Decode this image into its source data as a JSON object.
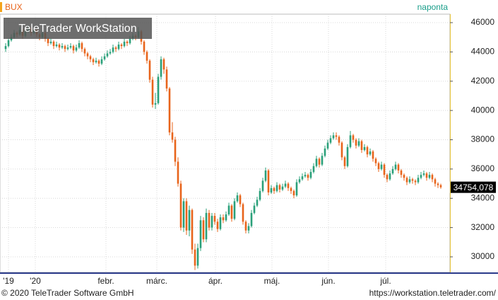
{
  "chart_data": {
    "type": "candlestick",
    "series_name": "BUX",
    "interval": "naponta",
    "watermark": "TeleTrader WorkStation",
    "footer_left": "© 2020 TeleTrader Software GmbH",
    "footer_right": "https://workstation.teletrader.com/",
    "up_color": "#2aa07a",
    "down_color": "#e8641b",
    "grid": true,
    "ylim": [
      28937,
      46580
    ],
    "yticks": [
      30000,
      32000,
      34000,
      36000,
      38000,
      40000,
      42000,
      44000,
      46000
    ],
    "xlim": [
      -2,
      157.25
    ],
    "xticks": [
      {
        "value": 1,
        "label": "'19"
      },
      {
        "value": 10.5,
        "label": "'20"
      },
      {
        "value": 35.5,
        "label": "febr."
      },
      {
        "value": 53.5,
        "label": "márc."
      },
      {
        "value": 74.25,
        "label": "ápr."
      },
      {
        "value": 94.25,
        "label": "máj."
      },
      {
        "value": 114.25,
        "label": "jún."
      },
      {
        "value": 134.5,
        "label": "júl."
      }
    ],
    "close_label": "34754,078",
    "ohlc": [
      [
        44200,
        44600,
        44000,
        44400
      ],
      [
        44400,
        44900,
        44300,
        44800
      ],
      [
        44800,
        45200,
        44700,
        45000
      ],
      [
        45000,
        45500,
        44900,
        45300
      ],
      [
        45300,
        45400,
        45000,
        45200
      ],
      [
        45200,
        45700,
        45100,
        45500
      ],
      [
        45500,
        45600,
        44900,
        45100
      ],
      [
        45100,
        45600,
        45000,
        45400
      ],
      [
        45400,
        45800,
        45300,
        45600
      ],
      [
        45600,
        45700,
        45100,
        45300
      ],
      [
        45300,
        45700,
        45200,
        45500
      ],
      [
        45500,
        45600,
        45000,
        45200
      ],
      [
        45200,
        45300,
        44800,
        45000
      ],
      [
        45000,
        45500,
        44900,
        45300
      ],
      [
        45300,
        45400,
        44700,
        44900
      ],
      [
        44900,
        45000,
        44400,
        44600
      ],
      [
        44600,
        44900,
        44500,
        44700
      ],
      [
        44700,
        44800,
        44200,
        44400
      ],
      [
        44400,
        44700,
        44300,
        44500
      ],
      [
        44500,
        44600,
        44100,
        44300
      ],
      [
        44300,
        44600,
        44200,
        44400
      ],
      [
        44400,
        44500,
        44000,
        44200
      ],
      [
        44200,
        44500,
        44100,
        44300
      ],
      [
        44300,
        44600,
        44200,
        44400
      ],
      [
        44400,
        44500,
        43900,
        44100
      ],
      [
        44100,
        44500,
        44000,
        44300
      ],
      [
        44300,
        44800,
        44200,
        44600
      ],
      [
        44600,
        44700,
        44000,
        44200
      ],
      [
        44200,
        44300,
        43700,
        43900
      ],
      [
        43900,
        44000,
        43500,
        43700
      ],
      [
        43700,
        43800,
        43300,
        43500
      ],
      [
        43500,
        43600,
        43100,
        43300
      ],
      [
        43300,
        43600,
        43200,
        43400
      ],
      [
        43400,
        43500,
        43000,
        43200
      ],
      [
        43200,
        43700,
        43100,
        43500
      ],
      [
        43500,
        43900,
        43400,
        43700
      ],
      [
        43700,
        44100,
        43600,
        43900
      ],
      [
        43900,
        44200,
        43800,
        44000
      ],
      [
        44000,
        44500,
        43900,
        44300
      ],
      [
        44300,
        44400,
        44000,
        44200
      ],
      [
        44200,
        44700,
        44100,
        44500
      ],
      [
        44500,
        44600,
        44200,
        44400
      ],
      [
        44400,
        44900,
        44300,
        44700
      ],
      [
        44700,
        44800,
        44400,
        44600
      ],
      [
        44600,
        45100,
        44500,
        44900
      ],
      [
        44900,
        45300,
        44800,
        45100
      ],
      [
        45100,
        45200,
        44800,
        45000
      ],
      [
        45000,
        45700,
        44900,
        45400
      ],
      [
        45400,
        45500,
        44500,
        44700
      ],
      [
        44700,
        44800,
        43800,
        44000
      ],
      [
        44000,
        44100,
        43200,
        43400
      ],
      [
        43400,
        43500,
        41900,
        42100
      ],
      [
        42100,
        42300,
        40200,
        40400
      ],
      [
        40400,
        41200,
        40100,
        40500
      ],
      [
        40500,
        42500,
        40400,
        42300
      ],
      [
        42300,
        43700,
        42100,
        43500
      ],
      [
        43500,
        43600,
        42500,
        42800
      ],
      [
        42800,
        43000,
        41300,
        41500
      ],
      [
        41500,
        41600,
        38300,
        38500
      ],
      [
        38500,
        39200,
        37800,
        38000
      ],
      [
        38000,
        38200,
        36200,
        36500
      ],
      [
        36500,
        36800,
        34800,
        35000
      ],
      [
        35000,
        35200,
        31800,
        32000
      ],
      [
        32000,
        34000,
        31700,
        33800
      ],
      [
        33800,
        34000,
        31500,
        31800
      ],
      [
        31800,
        33500,
        31400,
        33200
      ],
      [
        33200,
        33300,
        30200,
        30500
      ],
      [
        30500,
        30900,
        29100,
        29400
      ],
      [
        29400,
        30900,
        29200,
        30600
      ],
      [
        30600,
        32800,
        30400,
        32500
      ],
      [
        32500,
        32700,
        31000,
        31200
      ],
      [
        31200,
        33300,
        31000,
        33000
      ],
      [
        33000,
        33200,
        31800,
        32000
      ],
      [
        32000,
        33000,
        31800,
        32800
      ],
      [
        32800,
        33000,
        32200,
        32400
      ],
      [
        32400,
        32600,
        31700,
        31900
      ],
      [
        31900,
        32900,
        31800,
        32700
      ],
      [
        32700,
        32900,
        32300,
        32500
      ],
      [
        32500,
        33100,
        32400,
        32900
      ],
      [
        32900,
        33700,
        32800,
        33500
      ],
      [
        33500,
        33600,
        32400,
        32600
      ],
      [
        32600,
        34000,
        32500,
        33800
      ],
      [
        33800,
        34400,
        33700,
        34200
      ],
      [
        34200,
        34300,
        33400,
        33600
      ],
      [
        33600,
        33700,
        32200,
        32400
      ],
      [
        32400,
        32500,
        31600,
        31800
      ],
      [
        31800,
        32300,
        31600,
        32100
      ],
      [
        32100,
        33200,
        32000,
        33000
      ],
      [
        33000,
        33700,
        32900,
        33500
      ],
      [
        33500,
        34100,
        33400,
        33900
      ],
      [
        33900,
        34700,
        33800,
        34500
      ],
      [
        34500,
        35400,
        34400,
        35200
      ],
      [
        35200,
        36100,
        35100,
        35900
      ],
      [
        35900,
        36000,
        34200,
        34400
      ],
      [
        34400,
        34900,
        34300,
        34700
      ],
      [
        34700,
        34800,
        34300,
        34500
      ],
      [
        34500,
        35100,
        34400,
        34900
      ],
      [
        34900,
        35000,
        34400,
        34600
      ],
      [
        34600,
        35000,
        34500,
        34800
      ],
      [
        34800,
        35200,
        34700,
        35000
      ],
      [
        35000,
        35100,
        34500,
        34700
      ],
      [
        34700,
        34800,
        34300,
        34500
      ],
      [
        34500,
        34600,
        34000,
        34200
      ],
      [
        34200,
        35300,
        34100,
        35100
      ],
      [
        35100,
        35500,
        35000,
        35300
      ],
      [
        35300,
        35700,
        35200,
        35500
      ],
      [
        35500,
        35800,
        35400,
        35600
      ],
      [
        35600,
        35700,
        35200,
        35400
      ],
      [
        35400,
        36000,
        35300,
        35800
      ],
      [
        35800,
        36400,
        35700,
        36200
      ],
      [
        36200,
        36900,
        36100,
        36700
      ],
      [
        36700,
        36800,
        36100,
        36300
      ],
      [
        36300,
        37100,
        36200,
        36900
      ],
      [
        36900,
        37600,
        36800,
        37400
      ],
      [
        37400,
        38000,
        37300,
        37800
      ],
      [
        37800,
        38300,
        37700,
        38100
      ],
      [
        38100,
        38500,
        38000,
        38300
      ],
      [
        38300,
        38500,
        38000,
        38200
      ],
      [
        38200,
        38300,
        37600,
        37800
      ],
      [
        37800,
        37900,
        36600,
        36800
      ],
      [
        36800,
        36900,
        36000,
        36200
      ],
      [
        36200,
        37700,
        36100,
        37500
      ],
      [
        37500,
        38600,
        37400,
        38300
      ],
      [
        38300,
        38400,
        37800,
        38000
      ],
      [
        38000,
        38100,
        37400,
        37600
      ],
      [
        37600,
        38100,
        37500,
        37900
      ],
      [
        37900,
        38000,
        37100,
        37300
      ],
      [
        37300,
        37700,
        37200,
        37500
      ],
      [
        37500,
        37600,
        36800,
        37000
      ],
      [
        37000,
        37400,
        36900,
        37200
      ],
      [
        37200,
        37300,
        36500,
        36700
      ],
      [
        36700,
        36800,
        36200,
        36400
      ],
      [
        36400,
        36500,
        35800,
        36000
      ],
      [
        36000,
        36500,
        35900,
        36300
      ],
      [
        36300,
        36400,
        35400,
        35600
      ],
      [
        35600,
        35700,
        35100,
        35300
      ],
      [
        35300,
        35900,
        35200,
        35700
      ],
      [
        35700,
        36200,
        35600,
        36000
      ],
      [
        36000,
        36500,
        35900,
        36300
      ],
      [
        36300,
        36400,
        35700,
        35900
      ],
      [
        35900,
        36000,
        35400,
        35600
      ],
      [
        35600,
        35700,
        35200,
        35400
      ],
      [
        35400,
        35500,
        34900,
        35100
      ],
      [
        35100,
        35500,
        35000,
        35300
      ],
      [
        35300,
        35400,
        35000,
        35200
      ],
      [
        35200,
        35300,
        34900,
        35100
      ],
      [
        35100,
        35600,
        35000,
        35400
      ],
      [
        35400,
        35800,
        35300,
        35600
      ],
      [
        35600,
        35900,
        35500,
        35700
      ],
      [
        35700,
        35800,
        35200,
        35400
      ],
      [
        35400,
        35800,
        35300,
        35600
      ],
      [
        35600,
        35700,
        35100,
        35300
      ],
      [
        35300,
        35400,
        34800,
        35000
      ],
      [
        35000,
        35100,
        34700,
        34900
      ],
      [
        34900,
        35000,
        34650,
        34754.078
      ]
    ]
  }
}
